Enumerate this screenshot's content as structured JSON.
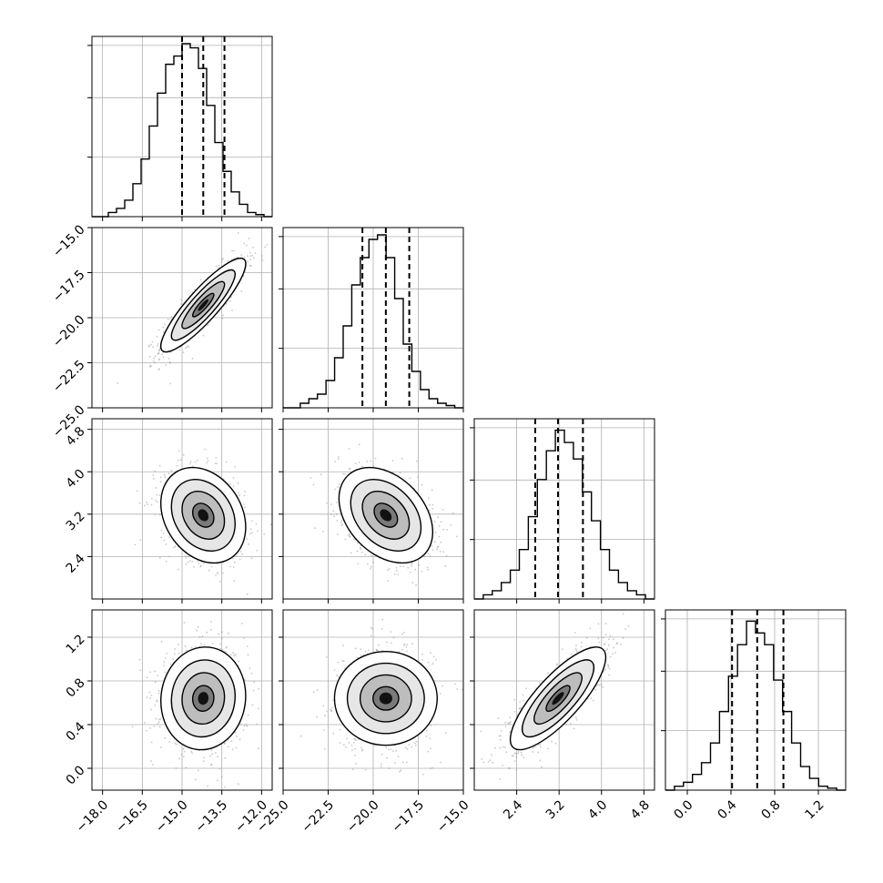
{
  "chart_data": {
    "type": "corner",
    "dims": 4,
    "grid": true,
    "params": [
      {
        "range": [
          -18.4,
          -11.6
        ],
        "ticks": [
          "−18.0",
          "−16.5",
          "−15.0",
          "−13.5",
          "−12.0"
        ],
        "tick_values": [
          -18.0,
          -16.5,
          -15.0,
          -13.5,
          -12.0
        ],
        "quantiles": [
          -15.0,
          -14.2,
          -13.4
        ],
        "hist_max": 0.42,
        "hist_values": [
          0.0,
          0.0,
          0.01,
          0.02,
          0.04,
          0.08,
          0.14,
          0.22,
          0.3,
          0.37,
          0.39,
          0.42,
          0.41,
          0.36,
          0.27,
          0.18,
          0.11,
          0.06,
          0.03,
          0.01,
          0.005,
          0.0
        ]
      },
      {
        "range": [
          -25.0,
          -15.0
        ],
        "ticks": [
          "−25.0",
          "−22.5",
          "−20.0",
          "−17.5",
          "−15.0"
        ],
        "tick_values": [
          -25.0,
          -22.5,
          -20.0,
          -17.5,
          -15.0
        ],
        "quantiles": [
          -20.6,
          -19.3,
          -18.0
        ],
        "hist_max": 0.38,
        "hist_values": [
          0.0,
          0.0,
          0.01,
          0.02,
          0.03,
          0.06,
          0.11,
          0.18,
          0.27,
          0.33,
          0.37,
          0.38,
          0.33,
          0.24,
          0.14,
          0.08,
          0.04,
          0.02,
          0.01,
          0.005,
          0.0
        ]
      },
      {
        "range": [
          1.6,
          5.0
        ],
        "ticks": [
          "2.4",
          "3.2",
          "4.0",
          "4.8"
        ],
        "tick_values": [
          2.4,
          3.2,
          4.0,
          4.8
        ],
        "quantiles": [
          2.75,
          3.18,
          3.65
        ],
        "hist_max": 0.42,
        "hist_values": [
          0.0,
          0.01,
          0.02,
          0.04,
          0.07,
          0.12,
          0.2,
          0.29,
          0.36,
          0.41,
          0.38,
          0.34,
          0.26,
          0.19,
          0.12,
          0.07,
          0.04,
          0.02,
          0.01,
          0.0
        ]
      },
      {
        "range": [
          -0.2,
          1.45
        ],
        "ticks": [
          "0.0",
          "0.4",
          "0.8",
          "1.2"
        ],
        "tick_values": [
          0.0,
          0.4,
          0.8,
          1.2
        ],
        "quantiles": [
          0.41,
          0.64,
          0.88
        ],
        "hist_max": 0.44,
        "hist_values": [
          0.0,
          0.01,
          0.02,
          0.04,
          0.07,
          0.12,
          0.2,
          0.29,
          0.37,
          0.43,
          0.4,
          0.37,
          0.28,
          0.2,
          0.12,
          0.06,
          0.03,
          0.01,
          0.005,
          0.0
        ]
      }
    ],
    "correlations": [
      [
        1.0,
        0.88,
        -0.25,
        0.05
      ],
      [
        0.88,
        1.0,
        -0.35,
        0.0
      ],
      [
        -0.25,
        -0.35,
        1.0,
        0.8
      ],
      [
        0.05,
        0.0,
        0.8,
        1.0
      ]
    ],
    "contour_levels": [
      0.5,
      1.0,
      1.5,
      2.0
    ]
  }
}
